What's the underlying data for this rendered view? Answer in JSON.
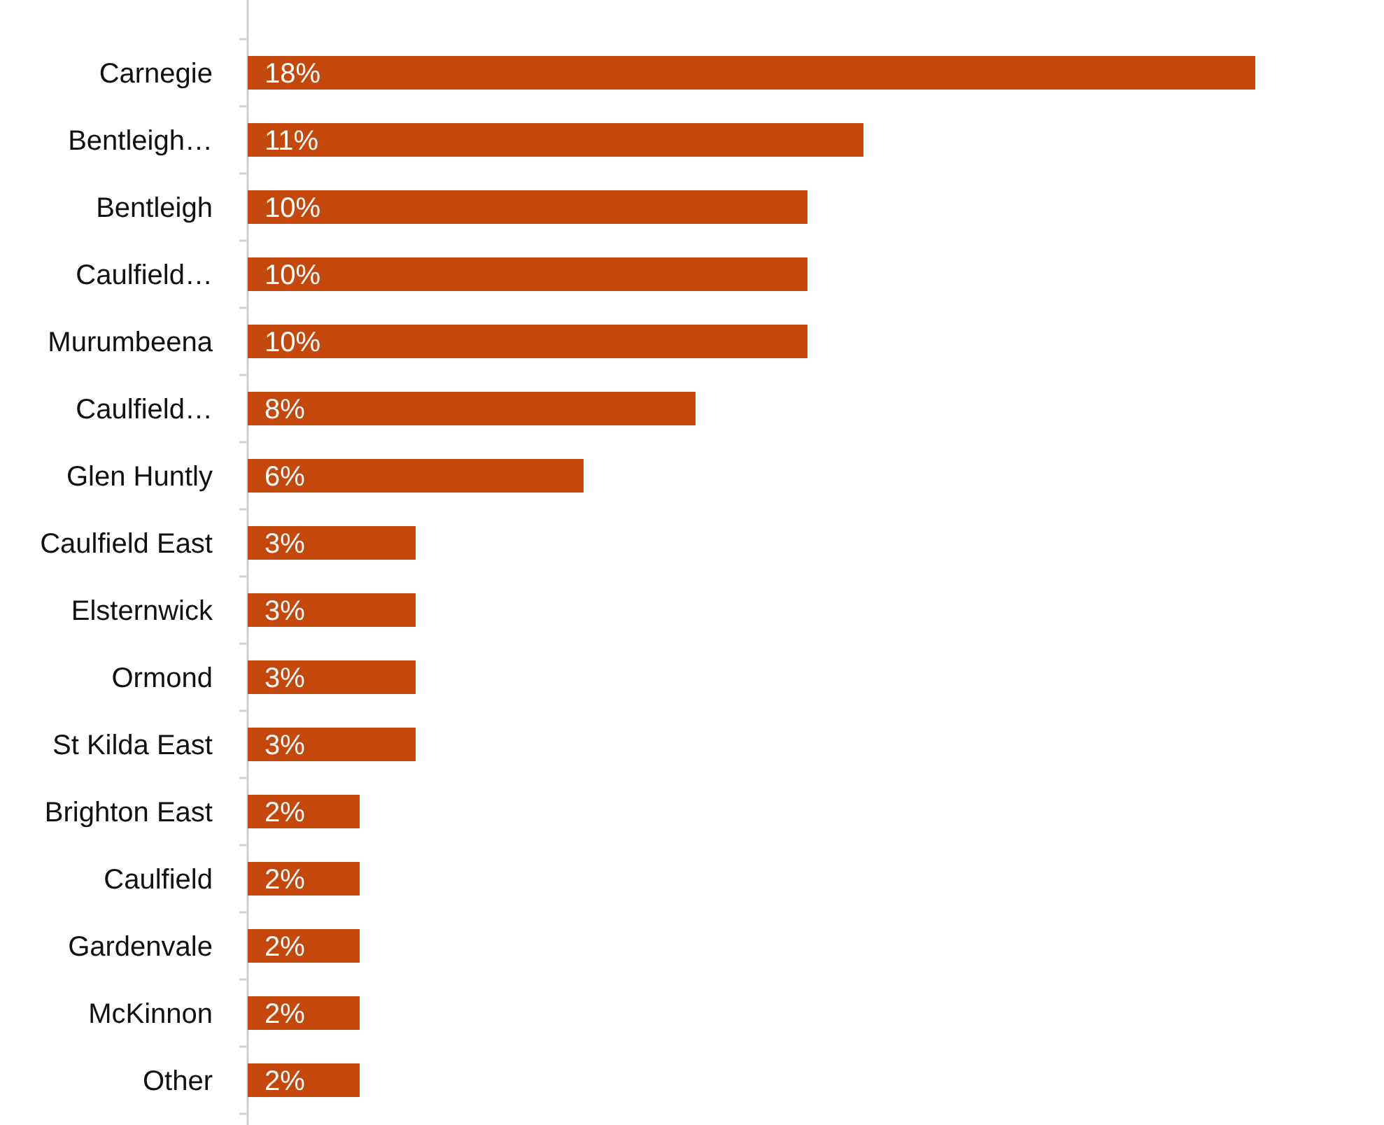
{
  "chart_data": {
    "type": "bar",
    "orientation": "horizontal",
    "categories": [
      "Carnegie",
      "Bentleigh…",
      "Bentleigh",
      "Caulfield…",
      "Murumbeena",
      "Caulfield…",
      "Glen Huntly",
      "Caulfield East",
      "Elsternwick",
      "Ormond",
      "St Kilda East",
      "Brighton East",
      "Caulfield",
      "Gardenvale",
      "McKinnon",
      "Other"
    ],
    "values": [
      18,
      11,
      10,
      10,
      10,
      8,
      6,
      3,
      3,
      3,
      3,
      2,
      2,
      2,
      2,
      2
    ],
    "value_labels": [
      "18%",
      "11%",
      "10%",
      "10%",
      "10%",
      "8%",
      "6%",
      "3%",
      "3%",
      "3%",
      "3%",
      "2%",
      "2%",
      "2%",
      "2%",
      "2%"
    ],
    "color": "#c4470b"
  }
}
